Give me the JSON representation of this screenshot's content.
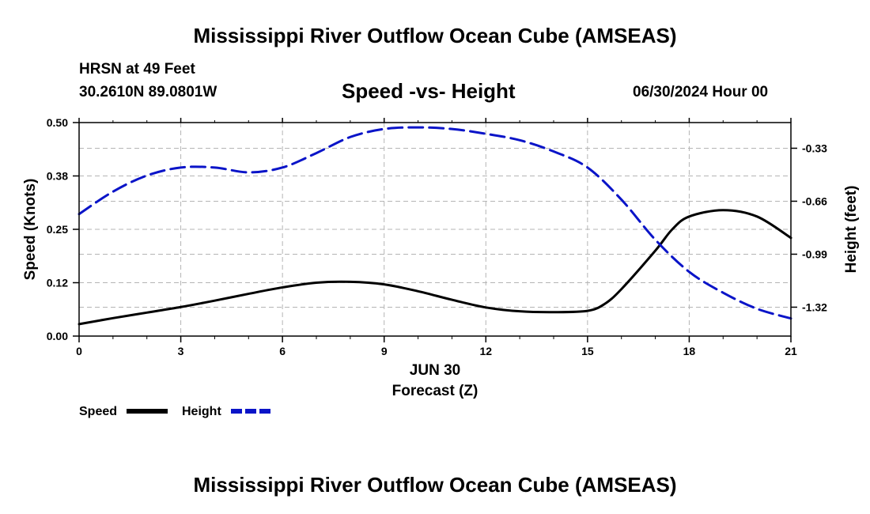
{
  "header": {
    "title": "Mississippi River Outflow Ocean Cube (AMSEAS)",
    "station": "HRSN at 49 Feet",
    "coords": "30.2610N  89.0801W",
    "subtitle": "Speed -vs- Height",
    "datetime": "06/30/2024 Hour 00"
  },
  "footer": {
    "title": "Mississippi River Outflow Ocean Cube (AMSEAS)"
  },
  "chart_data": {
    "type": "line",
    "title": "Speed -vs- Height",
    "xlabel": "Forecast (Z)",
    "xdate": "JUN 30",
    "ylabel": "Speed (Knots)",
    "y2label": "Height (feet)",
    "xlim": [
      0,
      21
    ],
    "ylim": [
      0,
      0.5
    ],
    "y2lim": [
      -1.5,
      -0.17
    ],
    "x_ticks": [
      0,
      3,
      6,
      9,
      12,
      15,
      18,
      21
    ],
    "y_ticks": [
      0,
      0.125,
      0.25,
      0.375,
      0.5
    ],
    "y_tick_labels": [
      "0.00",
      "0.12",
      "0.25",
      "0.38",
      "0.50"
    ],
    "y2_ticks": [
      -1.32,
      -0.99,
      -0.66,
      -0.33
    ],
    "y2_tick_labels": [
      "-1.32",
      "-0.99",
      "-0.66",
      "-0.33"
    ],
    "grid": true,
    "legend_position": "bottom-left",
    "series": [
      {
        "name": "Speed",
        "axis": "left",
        "color": "#000000",
        "style": "solid",
        "x": [
          0,
          1,
          2,
          3,
          4,
          5,
          6,
          7,
          8,
          9,
          10,
          11,
          12,
          13,
          14,
          15,
          15.5,
          16,
          17,
          17.5,
          18,
          19,
          20,
          21
        ],
        "values": [
          0.028,
          0.042,
          0.055,
          0.068,
          0.083,
          0.099,
          0.114,
          0.125,
          0.127,
          0.121,
          0.105,
          0.085,
          0.067,
          0.058,
          0.056,
          0.059,
          0.075,
          0.11,
          0.2,
          0.25,
          0.28,
          0.295,
          0.28,
          0.23
        ]
      },
      {
        "name": "Height",
        "axis": "right",
        "color": "#0a14c8",
        "style": "dashed",
        "x": [
          0,
          1,
          2,
          3,
          4,
          5,
          6,
          7,
          8,
          9,
          10,
          11,
          12,
          13,
          14,
          15,
          16,
          17,
          18,
          19,
          20,
          21
        ],
        "values": [
          -0.74,
          -0.6,
          -0.5,
          -0.45,
          -0.45,
          -0.48,
          -0.45,
          -0.36,
          -0.26,
          -0.21,
          -0.2,
          -0.21,
          -0.24,
          -0.28,
          -0.35,
          -0.45,
          -0.65,
          -0.9,
          -1.1,
          -1.23,
          -1.33,
          -1.39
        ]
      }
    ]
  }
}
